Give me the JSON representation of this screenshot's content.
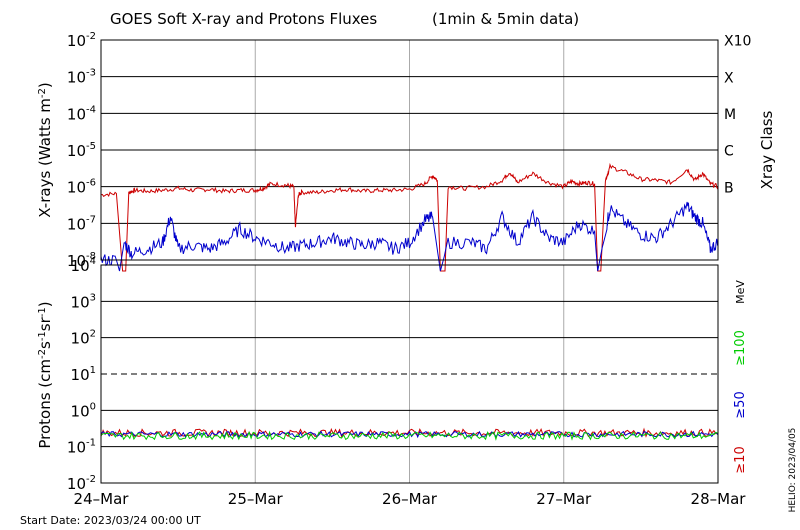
{
  "chart_data": [
    {
      "type": "line",
      "title": "GOES Soft X-ray and Protons Fluxes",
      "subtitle": "(1min & 5min data)",
      "ylabel_base": "X-rays (Watts m",
      "ylabel_exp": "-2",
      "ylabel_close": ")",
      "yscale": "log",
      "ylim": [
        1e-08,
        0.01
      ],
      "y_ticks": [
        {
          "base": "10",
          "exp": "-2",
          "value": 0.01
        },
        {
          "base": "10",
          "exp": "-3",
          "value": 0.001
        },
        {
          "base": "10",
          "exp": "-4",
          "value": 0.0001
        },
        {
          "base": "10",
          "exp": "-5",
          "value": 1e-05
        },
        {
          "base": "10",
          "exp": "-6",
          "value": 1e-06
        },
        {
          "base": "10",
          "exp": "-7",
          "value": 1e-07
        },
        {
          "base": "10",
          "exp": "-8",
          "value": 1e-08
        }
      ],
      "right_axis_label": "Xray Class",
      "classes": [
        {
          "label": "X10",
          "value": 0.001
        },
        {
          "label": "X",
          "value": 0.0001
        },
        {
          "label": "M",
          "value": 1e-05
        },
        {
          "label": "C",
          "value": 1e-06
        },
        {
          "label": "B",
          "value": 1e-07
        }
      ],
      "x_unit": "days since start",
      "xlim": [
        0,
        4
      ],
      "series": [
        {
          "color": "#cc0000",
          "points": [
            [
              0,
              6e-07
            ],
            [
              0.1,
              6.5e-07
            ],
            [
              0.14,
              5e-09
            ],
            [
              0.16,
              5e-09
            ],
            [
              0.18,
              7e-07
            ],
            [
              0.22,
              8e-07
            ],
            [
              0.3,
              7.5e-07
            ],
            [
              0.4,
              8e-07
            ],
            [
              0.5,
              9e-07
            ],
            [
              0.6,
              8e-07
            ],
            [
              0.7,
              8.5e-07
            ],
            [
              0.8,
              7.5e-07
            ],
            [
              0.9,
              8e-07
            ],
            [
              1.0,
              8e-07
            ],
            [
              1.05,
              9e-07
            ],
            [
              1.1,
              1.2e-06
            ],
            [
              1.2,
              1.1e-06
            ],
            [
              1.25,
              1e-06
            ],
            [
              1.26,
              8e-08
            ],
            [
              1.28,
              6e-07
            ],
            [
              1.3,
              7e-07
            ],
            [
              1.4,
              7e-07
            ],
            [
              1.5,
              8e-07
            ],
            [
              1.6,
              8.5e-07
            ],
            [
              1.7,
              7.5e-07
            ],
            [
              1.8,
              8e-07
            ],
            [
              1.9,
              8e-07
            ],
            [
              2.0,
              8.5e-07
            ],
            [
              2.1,
              1.2e-06
            ],
            [
              2.15,
              2e-06
            ],
            [
              2.18,
              1.5e-06
            ],
            [
              2.2,
              5e-09
            ],
            [
              2.23,
              5e-09
            ],
            [
              2.25,
              1e-06
            ],
            [
              2.35,
              9e-07
            ],
            [
              2.5,
              1e-06
            ],
            [
              2.6,
              1.5e-06
            ],
            [
              2.65,
              2.5e-06
            ],
            [
              2.7,
              1.3e-06
            ],
            [
              2.8,
              2.3e-06
            ],
            [
              2.9,
              1.3e-06
            ],
            [
              3.0,
              1e-06
            ],
            [
              3.05,
              1.4e-06
            ],
            [
              3.1,
              1.2e-06
            ],
            [
              3.15,
              1.3e-06
            ],
            [
              3.2,
              1.2e-06
            ],
            [
              3.22,
              5e-09
            ],
            [
              3.24,
              5e-09
            ],
            [
              3.27,
              1.5e-06
            ],
            [
              3.3,
              3.5e-06
            ],
            [
              3.4,
              2.5e-06
            ],
            [
              3.5,
              1.6e-06
            ],
            [
              3.6,
              1.5e-06
            ],
            [
              3.7,
              1.3e-06
            ],
            [
              3.8,
              3e-06
            ],
            [
              3.85,
              1.5e-06
            ],
            [
              3.9,
              2.3e-06
            ],
            [
              3.95,
              1.2e-06
            ],
            [
              4.0,
              1e-06
            ]
          ]
        },
        {
          "color": "#0000cc",
          "points": [
            [
              0,
              1e-08
            ],
            [
              0.1,
              1e-08
            ],
            [
              0.12,
              5e-09
            ],
            [
              0.15,
              3e-08
            ],
            [
              0.2,
              1.5e-08
            ],
            [
              0.3,
              2e-08
            ],
            [
              0.4,
              3e-08
            ],
            [
              0.45,
              1.5e-07
            ],
            [
              0.5,
              2e-08
            ],
            [
              0.6,
              2.5e-08
            ],
            [
              0.7,
              2e-08
            ],
            [
              0.8,
              3e-08
            ],
            [
              0.9,
              7e-08
            ],
            [
              1.0,
              4e-08
            ],
            [
              1.1,
              3e-08
            ],
            [
              1.2,
              2e-08
            ],
            [
              1.3,
              2.5e-08
            ],
            [
              1.4,
              3e-08
            ],
            [
              1.5,
              4e-08
            ],
            [
              1.6,
              3e-08
            ],
            [
              1.7,
              2.5e-08
            ],
            [
              1.8,
              3e-08
            ],
            [
              1.9,
              2e-08
            ],
            [
              2.0,
              3e-08
            ],
            [
              2.1,
              1.2e-07
            ],
            [
              2.15,
              1.5e-07
            ],
            [
              2.2,
              5e-09
            ],
            [
              2.25,
              3e-08
            ],
            [
              2.4,
              3e-08
            ],
            [
              2.5,
              2e-08
            ],
            [
              2.6,
              1.5e-07
            ],
            [
              2.7,
              3e-08
            ],
            [
              2.8,
              1.5e-07
            ],
            [
              2.9,
              4e-08
            ],
            [
              3.0,
              3e-08
            ],
            [
              3.1,
              1e-07
            ],
            [
              3.2,
              6e-08
            ],
            [
              3.22,
              5e-09
            ],
            [
              3.28,
              1e-07
            ],
            [
              3.3,
              2.5e-07
            ],
            [
              3.4,
              1e-07
            ],
            [
              3.5,
              5e-08
            ],
            [
              3.6,
              4e-08
            ],
            [
              3.7,
              1e-07
            ],
            [
              3.8,
              3e-07
            ],
            [
              3.85,
              1.5e-07
            ],
            [
              3.9,
              1e-07
            ],
            [
              3.95,
              2e-08
            ],
            [
              4.0,
              3e-08
            ]
          ]
        }
      ]
    },
    {
      "type": "line",
      "ylabel_base": "Protons (cm",
      "ylabel_exp1": "-2",
      "ylabel_mid": "s",
      "ylabel_exp2": "-1",
      "ylabel_mid2": "sr",
      "ylabel_exp3": "-1",
      "ylabel_close": ")",
      "yscale": "log",
      "ylim": [
        0.01,
        10000
      ],
      "y_ticks": [
        {
          "base": "10",
          "exp": "4",
          "value": 10000
        },
        {
          "base": "10",
          "exp": "3",
          "value": 1000
        },
        {
          "base": "10",
          "exp": "2",
          "value": 100
        },
        {
          "base": "10",
          "exp": "1",
          "value": 10
        },
        {
          "base": "10",
          "exp": "0",
          "value": 1
        },
        {
          "base": "10",
          "exp": "-1",
          "value": 0.1
        },
        {
          "base": "10",
          "exp": "-2",
          "value": 0.01
        }
      ],
      "threshold_value": 10,
      "energy_unit": "MeV",
      "channels": [
        {
          "label": "≥100",
          "color": "#00cc00"
        },
        {
          "label": "≥50",
          "color": "#0000cc"
        },
        {
          "label": "≥10",
          "color": "#cc0000"
        }
      ],
      "xlim": [
        0,
        4
      ],
      "x_ticks": [
        {
          "label": "24–Mar",
          "value": 0
        },
        {
          "label": "25–Mar",
          "value": 1
        },
        {
          "label": "26–Mar",
          "value": 2
        },
        {
          "label": "27–Mar",
          "value": 3
        },
        {
          "label": "28–Mar",
          "value": 4
        }
      ],
      "series": [
        {
          "color": "#cc0000",
          "base": 0.24,
          "noise": 0.2
        },
        {
          "color": "#0000cc",
          "base": 0.22,
          "noise": 0.15
        },
        {
          "color": "#00cc00",
          "base": 0.2,
          "noise": 0.2
        }
      ]
    }
  ],
  "footer": {
    "start_date": "Start Date: 2023/03/24 00:00 UT",
    "credit": "HELIO: 2023/04/05"
  }
}
